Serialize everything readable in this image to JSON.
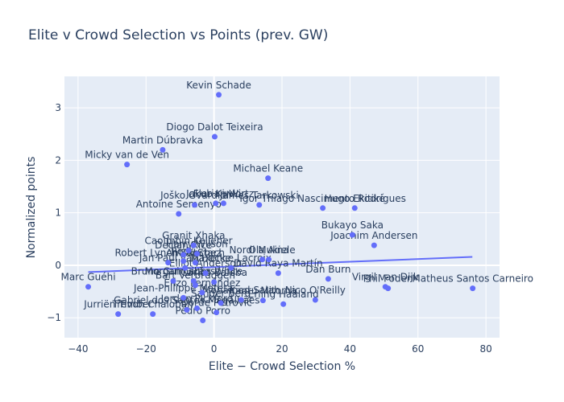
{
  "title": "Elite v Crowd Selection vs Points (prev. GW)",
  "colors": {
    "marker": "#636efa",
    "plot_bg": "#e5ecf6",
    "grid": "#ffffff",
    "text": "#2a3f5f"
  },
  "chart_data": {
    "type": "scatter",
    "title": "Elite v Crowd Selection vs Points (prev. GW)",
    "xlabel": "Elite − Crowd Selection %",
    "ylabel": "Normalized points",
    "xlim": [
      -44,
      84
    ],
    "ylim": [
      -1.38,
      3.6
    ],
    "xticks": [
      -40,
      -20,
      0,
      20,
      40,
      60,
      80
    ],
    "yticks": [
      -1,
      0,
      1,
      2,
      3
    ],
    "grid": true,
    "legend": false,
    "trendline": {
      "x": [
        -37,
        76
      ],
      "y": [
        -0.13,
        0.16
      ]
    },
    "points": [
      {
        "name": "Kevin Schade",
        "x": 1.4,
        "y": 3.25
      },
      {
        "name": "Diogo Dalot Teixeira",
        "x": 0.2,
        "y": 2.45
      },
      {
        "name": "Martin Dúbravka",
        "x": -15.1,
        "y": 2.2
      },
      {
        "name": "Micky van de Ven",
        "x": -25.6,
        "y": 1.92
      },
      {
        "name": "Michael Keane",
        "x": 15.9,
        "y": 1.66
      },
      {
        "name": "Joško Gvardiol",
        "x": -5.7,
        "y": 1.15
      },
      {
        "name": "Florian Wirtz",
        "x": 2.8,
        "y": 1.18
      },
      {
        "name": "Jakub Kiwior",
        "x": 0.5,
        "y": 1.18
      },
      {
        "name": "James Tarkowski",
        "x": 13.3,
        "y": 1.15
      },
      {
        "name": "Antoine Semenyo",
        "x": -10.4,
        "y": 0.98
      },
      {
        "name": "Igor Thiago Nascimento Rodrigues",
        "x": 32.0,
        "y": 1.09
      },
      {
        "name": "Hugo Ekitiké",
        "x": 41.4,
        "y": 1.09
      },
      {
        "name": "Bukayo Saka",
        "x": 40.7,
        "y": 0.58
      },
      {
        "name": "Joachim Andersen",
        "x": 47.1,
        "y": 0.38
      },
      {
        "name": "Granit Xhaka",
        "x": -6.0,
        "y": 0.38
      },
      {
        "name": "Caoimhin Kelleher",
        "x": -7.5,
        "y": 0.28
      },
      {
        "name": "Declan Rice",
        "x": -9.0,
        "y": 0.2
      },
      {
        "name": "Harry Wilson",
        "x": -5.0,
        "y": 0.22
      },
      {
        "name": "Robert Lynch Sánchez",
        "x": -13.5,
        "y": 0.05
      },
      {
        "name": "Rodri",
        "x": -9.0,
        "y": 0.08
      },
      {
        "name": "Anton Stach",
        "x": -5.5,
        "y": 0.05
      },
      {
        "name": "Nordi Mukiele",
        "x": 14.2,
        "y": 0.11
      },
      {
        "name": "Ola Aina",
        "x": 16.1,
        "y": 0.11
      },
      {
        "name": "Jan Paul van Hecke",
        "x": -8.5,
        "y": -0.05
      },
      {
        "name": "Maxence Lacroix",
        "x": 5.0,
        "y": -0.05
      },
      {
        "name": "Elliot Anderson",
        "x": -2.5,
        "y": -0.15
      },
      {
        "name": "David Raya Martín",
        "x": 18.9,
        "y": -0.15
      },
      {
        "name": "Dan Burn",
        "x": 33.6,
        "y": -0.26
      },
      {
        "name": "Marc Guéhi",
        "x": -37.0,
        "y": -0.41
      },
      {
        "name": "Bruno Guimarães",
        "x": -12.0,
        "y": -0.3
      },
      {
        "name": "Morgan Gibbs-White",
        "x": -6.0,
        "y": -0.3
      },
      {
        "name": "Carlos Baleba",
        "x": 0.0,
        "y": -0.32
      },
      {
        "name": "Bart Verbruggen",
        "x": -5.5,
        "y": -0.38
      },
      {
        "name": "Virgil van Dijk",
        "x": 50.4,
        "y": -0.41
      },
      {
        "name": "Phil Foden",
        "x": 51.2,
        "y": -0.44
      },
      {
        "name": "Matheus Santos Carneiro",
        "x": 76.1,
        "y": -0.44
      },
      {
        "name": "Enzo Fernández",
        "x": -3.5,
        "y": -0.52
      },
      {
        "name": "Kaoru Mitoma",
        "x": 14.4,
        "y": -0.67
      },
      {
        "name": "Erling Haaland",
        "x": 20.4,
        "y": -0.74
      },
      {
        "name": "Nico O'Reilly",
        "x": 29.8,
        "y": -0.66
      },
      {
        "name": "Jean-Philippe Mateta",
        "x": -9.0,
        "y": -0.62
      },
      {
        "name": "Mohamed Salah",
        "x": 8.0,
        "y": -0.66
      },
      {
        "name": "Sander Berg",
        "x": 2.0,
        "y": -0.72
      },
      {
        "name": "Jurriën Timber",
        "x": -28.2,
        "y": -0.93
      },
      {
        "name": "Trevoh Chalobah",
        "x": -18.0,
        "y": -0.93
      },
      {
        "name": "Đorđe Petrović",
        "x": 0.7,
        "y": -0.9
      },
      {
        "name": "Gabriel dos Santos Magalhães",
        "x": -8.0,
        "y": -0.85
      },
      {
        "name": "Jordan Pickford",
        "x": -5.0,
        "y": -0.82
      },
      {
        "name": "Pedro Porro",
        "x": -3.3,
        "y": -1.05
      }
    ]
  }
}
